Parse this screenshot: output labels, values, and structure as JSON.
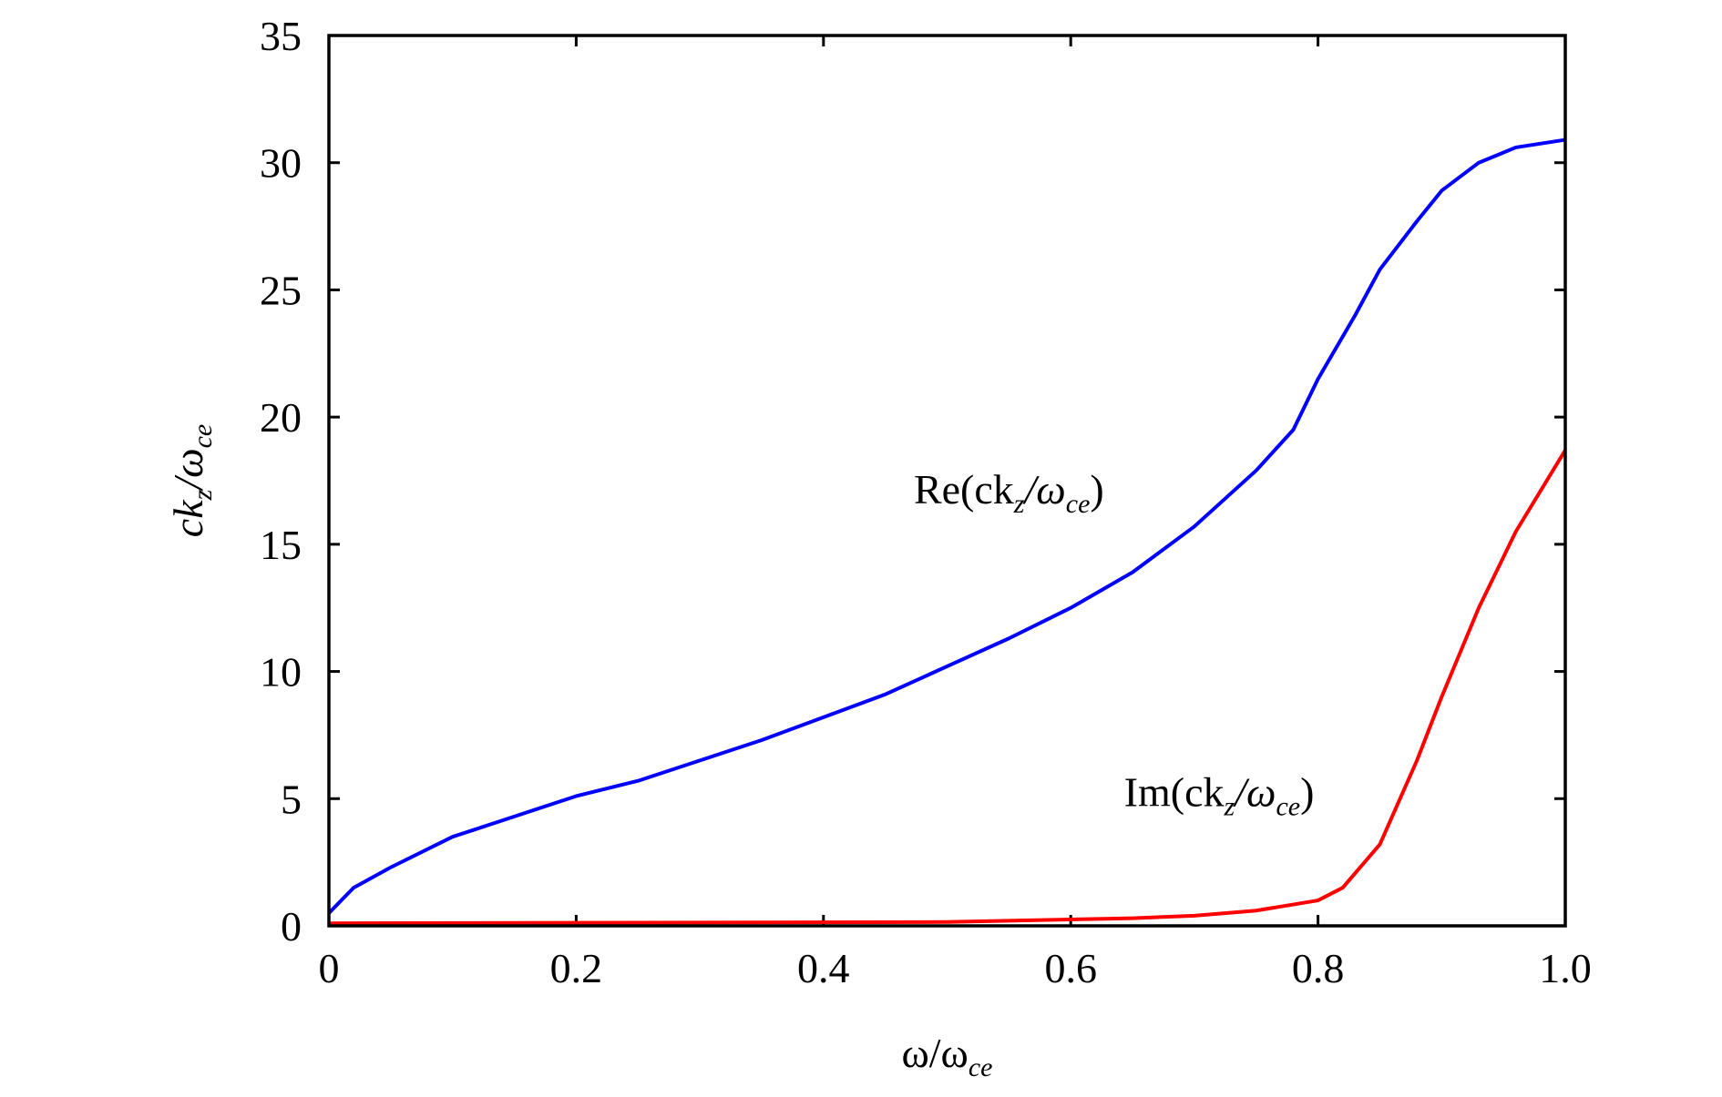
{
  "chart_data": {
    "type": "line",
    "xlabel": [
      "ω/ω",
      "ce"
    ],
    "ylabel": [
      "ck",
      "z",
      "/ω",
      "ce"
    ],
    "xlim": [
      0,
      1
    ],
    "ylim": [
      0,
      35
    ],
    "xticks": [
      0,
      0.2,
      0.4,
      0.6,
      0.8,
      {
        "value": 1,
        "label": "1.0"
      }
    ],
    "yticks": [
      0,
      5,
      10,
      15,
      20,
      25,
      30,
      35
    ],
    "series": [
      {
        "name": [
          "Re(ck",
          "z",
          "/ω",
          "ce",
          ")"
        ],
        "color": "#0000ff",
        "x": [
          0,
          0.02,
          0.05,
          0.1,
          0.15,
          0.2,
          0.25,
          0.3,
          0.35,
          0.4,
          0.45,
          0.5,
          0.55,
          0.6,
          0.65,
          0.7,
          0.75,
          0.78,
          0.8,
          0.83,
          0.85,
          0.88,
          0.9,
          0.93,
          0.96,
          1
        ],
        "values": [
          0.5,
          1.5,
          2.3,
          3.5,
          4.3,
          5.1,
          5.7,
          6.5,
          7.3,
          8.2,
          9.1,
          10.2,
          11.3,
          12.5,
          13.9,
          15.7,
          17.9,
          19.5,
          21.5,
          24.0,
          25.8,
          27.7,
          28.9,
          30.0,
          30.6,
          30.9
        ]
      },
      {
        "name": [
          "Im(ck",
          "z",
          "/ω",
          "ce",
          ")"
        ],
        "color": "#ff0000",
        "x": [
          0,
          0.5,
          0.65,
          0.7,
          0.75,
          0.8,
          0.82,
          0.85,
          0.88,
          0.9,
          0.93,
          0.96,
          1
        ],
        "values": [
          0.1,
          0.15,
          0.3,
          0.4,
          0.6,
          1.0,
          1.5,
          3.2,
          6.5,
          9.0,
          12.5,
          15.5,
          18.7
        ]
      }
    ]
  }
}
